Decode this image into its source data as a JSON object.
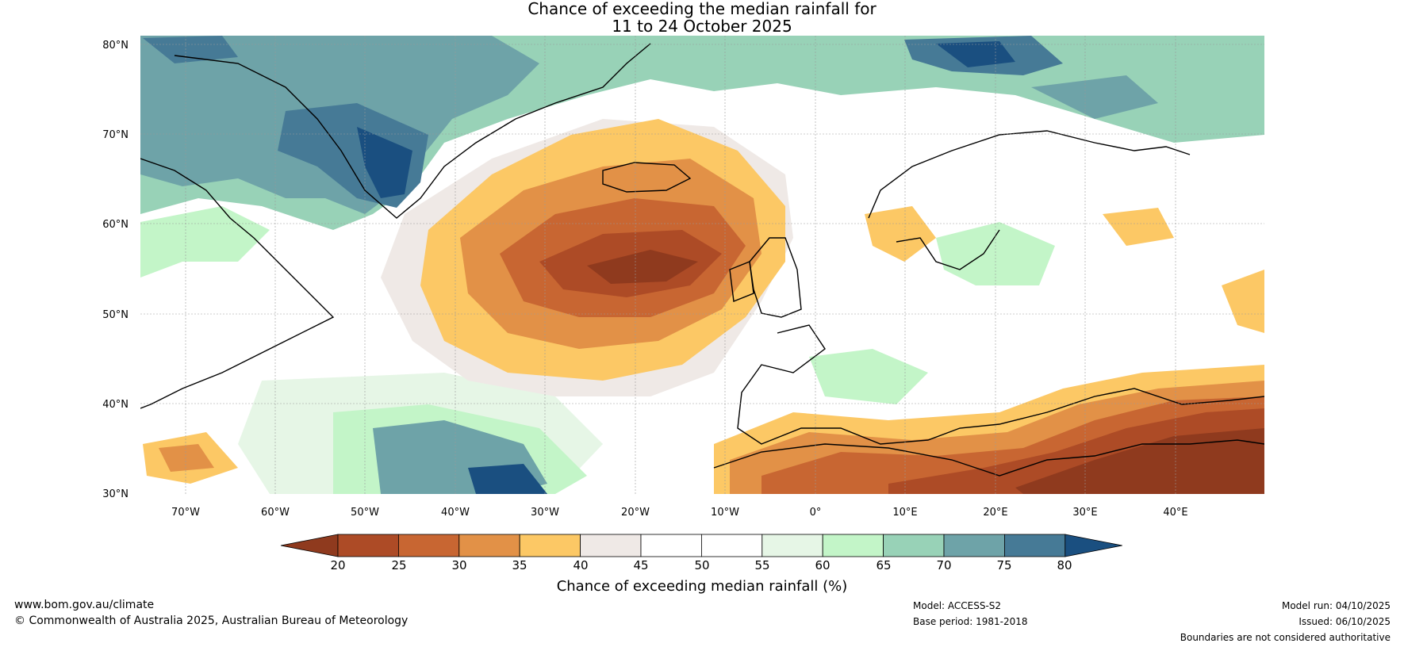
{
  "title": {
    "line1": "Chance of exceeding the median rainfall for",
    "line2": "11 to 24 October 2025"
  },
  "map": {
    "lat_ticks": [
      "80°N",
      "70°N",
      "60°N",
      "50°N",
      "40°N",
      "30°N"
    ],
    "lon_ticks": [
      "70°W",
      "60°W",
      "50°W",
      "40°W",
      "30°W",
      "20°W",
      "10°W",
      "0°",
      "10°E",
      "20°E",
      "30°E",
      "40°E"
    ],
    "lat_range": [
      30,
      81
    ],
    "lon_range": [
      -75,
      50
    ]
  },
  "colorbar": {
    "label": "Chance of exceeding median rainfall (%)",
    "ticks": [
      "20",
      "25",
      "30",
      "35",
      "40",
      "45",
      "50",
      "55",
      "60",
      "65",
      "70",
      "75",
      "80"
    ],
    "colors": [
      "#8f3a1e",
      "#ad4b26",
      "#c86632",
      "#e29147",
      "#fcc865",
      "#efe9e6",
      "#ffffff",
      "#ffffff",
      "#e6f6e6",
      "#c3f5c8",
      "#98d2b7",
      "#6ea3a8",
      "#467a96",
      "#1a4f80"
    ]
  },
  "footer": {
    "website": "www.bom.gov.au/climate",
    "copyright": "© Commonwealth of Australia 2025, Australian Bureau of Meteorology",
    "model": "Model: ACCESS-S2",
    "base_period": "Base period: 1981-2018",
    "model_run": "Model run: 04/10/2025",
    "issued": "Issued: 06/10/2025",
    "disclaimer": "Boundaries are not considered authoritative"
  }
}
